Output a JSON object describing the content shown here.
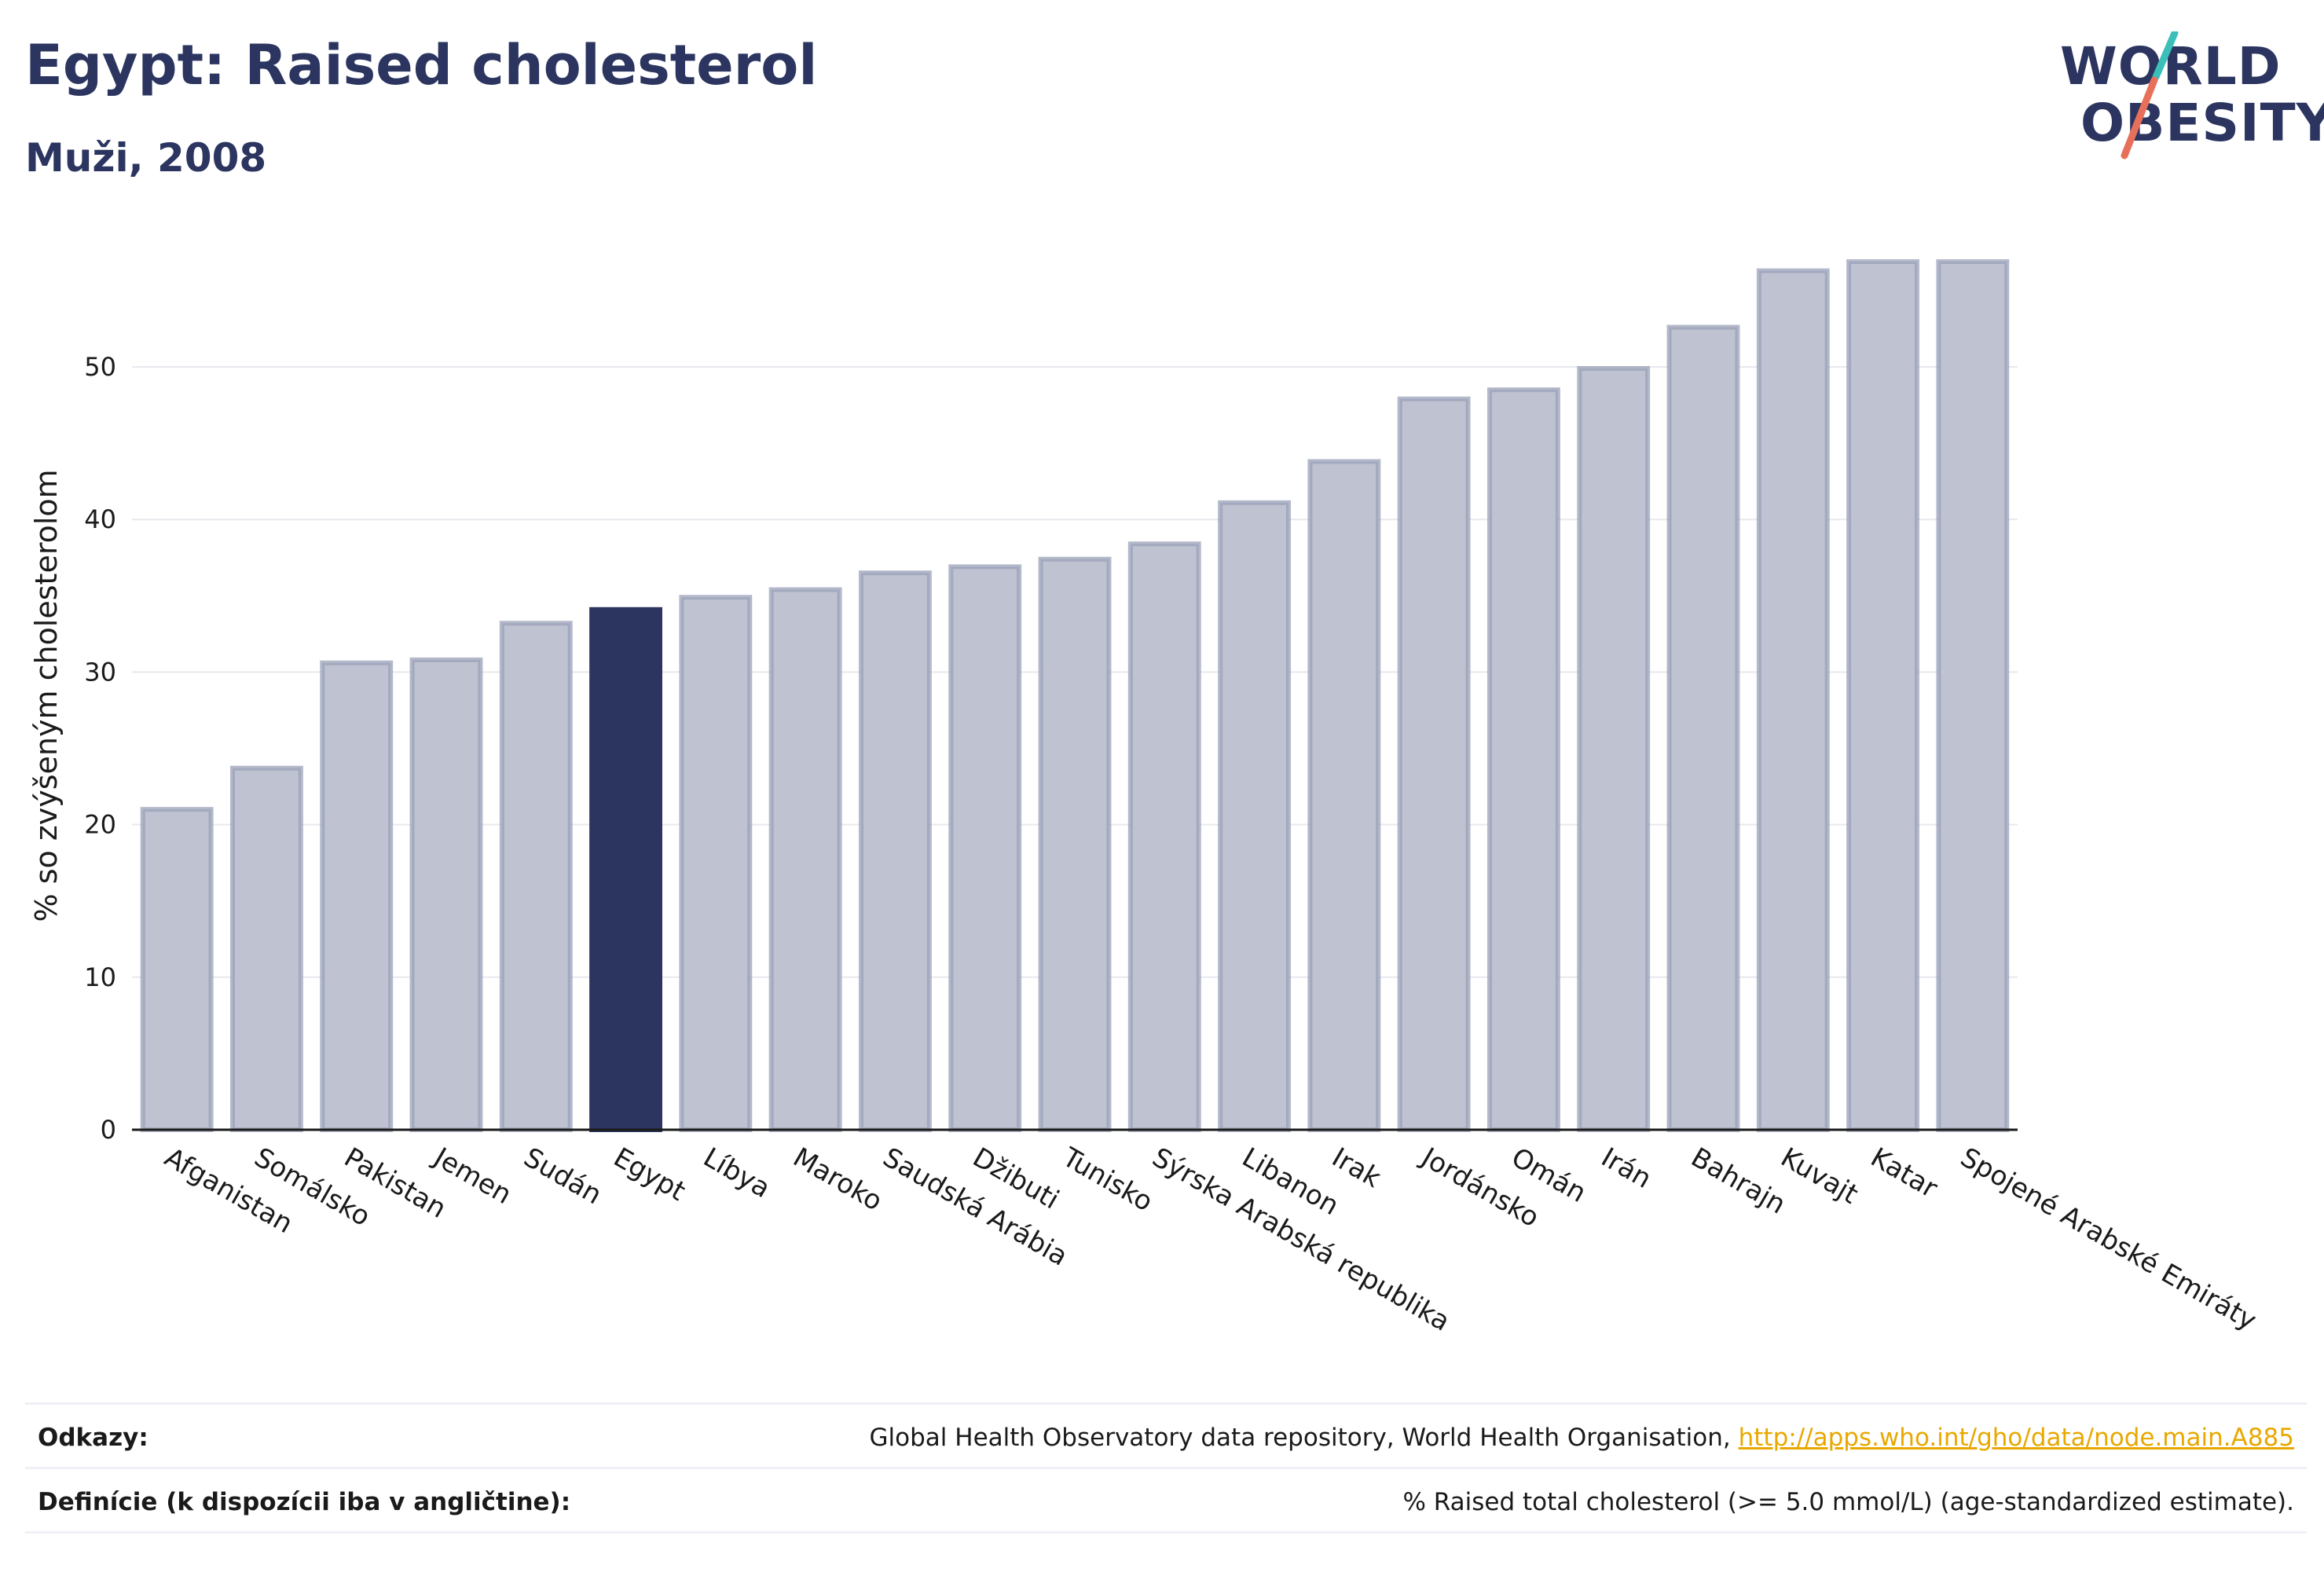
{
  "header": {
    "title": "Egypt: Raised cholesterol",
    "subtitle": "Muži, 2008"
  },
  "logo": {
    "line1": "WORLD",
    "line2": "OBESITY",
    "colors": {
      "text": "#2b3560",
      "accent_top": "#3bbfb9",
      "accent_bottom": "#e8705a"
    }
  },
  "chart_data": {
    "type": "bar",
    "title": "",
    "xlabel": "",
    "ylabel": "% so zvýšeným cholesterolom",
    "ylim": [
      0,
      60
    ],
    "yticks": [
      0,
      10,
      20,
      30,
      40,
      50
    ],
    "grid": true,
    "highlight": "Egypt",
    "colors": {
      "bar": "#bfc2d0",
      "bar_edge": "#9aa0b8",
      "highlight": "#2b3560",
      "grid": "#e8e9ee"
    },
    "categories": [
      "Afganistan",
      "Somálsko",
      "Pakistan",
      "Jemen",
      "Sudán",
      "Egypt",
      "Líbya",
      "Maroko",
      "Saudská Arábia",
      "Džibuti",
      "Tunisko",
      "Sýrska Arabská republika",
      "Libanon",
      "Irak",
      "Jordánsko",
      "Omán",
      "Irán",
      "Bahrajn",
      "Kuvajt",
      "Katar",
      "Spojené Arabské Emiráty"
    ],
    "values": [
      21.0,
      23.7,
      30.6,
      30.8,
      33.2,
      34.1,
      34.9,
      35.4,
      36.5,
      36.9,
      37.4,
      38.4,
      41.1,
      43.8,
      47.9,
      48.5,
      49.9,
      52.6,
      56.3,
      56.9,
      56.9
    ]
  },
  "footer": {
    "sources_label": "Odkazy:",
    "sources_text": "Global Health Observatory data repository, World Health Organisation, ",
    "sources_link": "http://apps.who.int/gho/data/node.main.A885",
    "definitions_label": "Definície (k dispozícii iba v angličtine):",
    "definitions_text": "% Raised total cholesterol (>= 5.0 mmol/L) (age-standardized estimate)."
  }
}
